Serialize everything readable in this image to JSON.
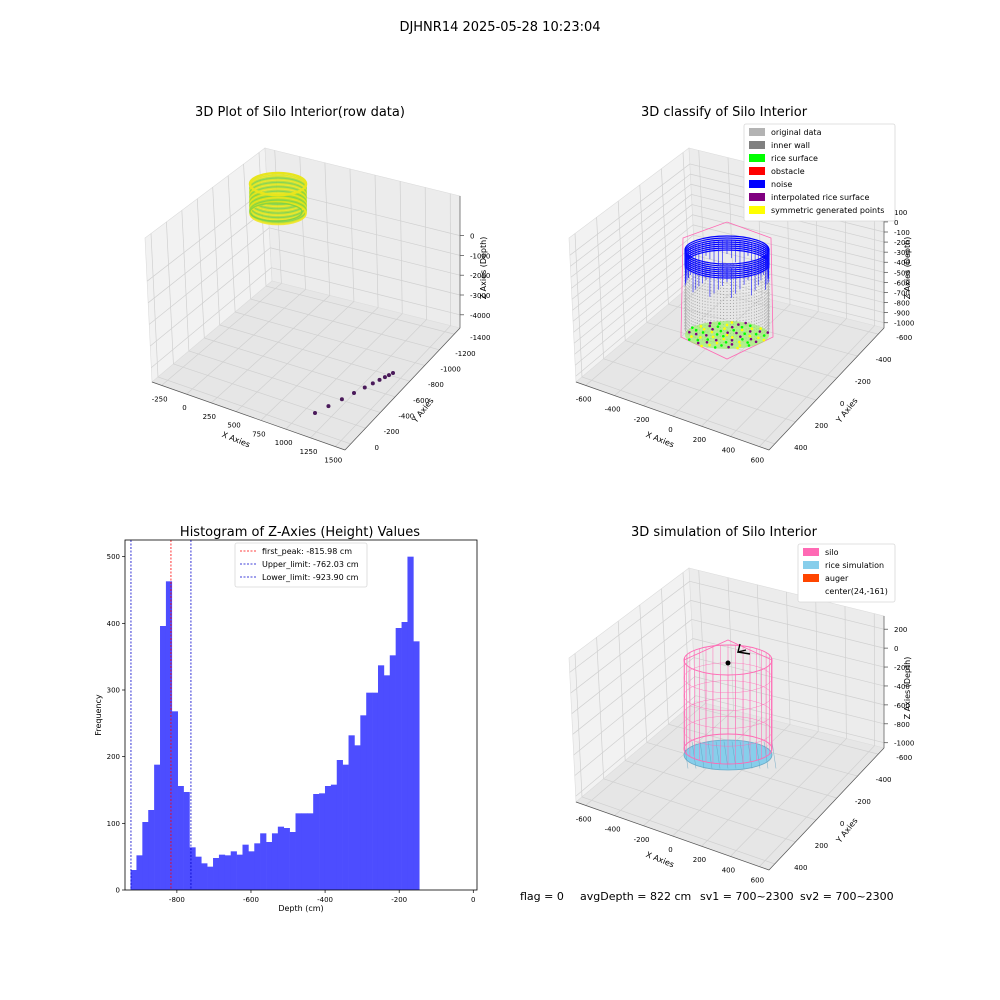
{
  "suptitle": "DJHNR14 2025-05-28 10:23:04",
  "footer": {
    "flag": "flag = 0",
    "avg_depth": "avgDepth = 822 cm",
    "sv1": "sv1 = 700~2300",
    "sv2": "sv2 = 700~2300"
  },
  "chart_data": [
    {
      "type": "scatter",
      "title": "3D Plot of Silo Interior(row data)",
      "xlabel": "X Axies",
      "ylabel": "Y Axies",
      "zlabel": "Z Axies (Depth)",
      "x_ticks": [
        "-250",
        "0",
        "250",
        "500",
        "750",
        "1000",
        "1250",
        "1500"
      ],
      "y_ticks": [
        "0",
        "-200",
        "-400",
        "-600",
        "-800",
        "-1000",
        "-1200",
        "-1400"
      ],
      "z_ticks": [
        "0",
        "-1000",
        "-2000",
        "-3000",
        "-4000"
      ],
      "ring_colors": [
        "#d4e51a",
        "#f2e51c",
        "#a8dc34",
        "#7bd04a"
      ],
      "outlier_color": "#4a1a5a",
      "outlier_points": [
        {
          "x": 1480,
          "y": -1380,
          "z": -4700
        },
        {
          "x": 1380,
          "y": -1250,
          "z": -4700
        },
        {
          "x": 1280,
          "y": -1120,
          "z": -4700
        },
        {
          "x": 1190,
          "y": -980,
          "z": -4700
        },
        {
          "x": 1110,
          "y": -860,
          "z": -4700
        },
        {
          "x": 1050,
          "y": -740,
          "z": -4700
        },
        {
          "x": 1000,
          "y": -640,
          "z": -4700
        },
        {
          "x": 960,
          "y": -540,
          "z": -4700
        },
        {
          "x": 930,
          "y": -450,
          "z": -4700
        },
        {
          "x": 900,
          "y": -360,
          "z": -4700
        }
      ]
    },
    {
      "type": "scatter",
      "title": "3D classify of Silo Interior",
      "xlabel": "X Axies",
      "ylabel": "Y Axies",
      "zlabel": "Z Axies (Depth)",
      "x_ticks": [
        "-600",
        "-400",
        "-200",
        "0",
        "200",
        "400",
        "600"
      ],
      "y_ticks": [
        "400",
        "200",
        "0",
        "-200",
        "-400",
        "-600"
      ],
      "z_ticks": [
        "100",
        "0",
        "-100",
        "-200",
        "-300",
        "-400",
        "-500",
        "-600",
        "-700",
        "-800",
        "-900",
        "-1000"
      ],
      "legend": [
        {
          "label": "original data",
          "color": "#b3b3b3"
        },
        {
          "label": "inner wall",
          "color": "#808080"
        },
        {
          "label": "rice surface",
          "color": "#00ff00"
        },
        {
          "label": "obstacle",
          "color": "#ff0000"
        },
        {
          "label": "noise",
          "color": "#0000ff"
        },
        {
          "label": "interpolated rice surface",
          "color": "#800080"
        },
        {
          "label": "symmetric generated points",
          "color": "#ffff00"
        }
      ],
      "hull_color": "#ff69b4"
    },
    {
      "type": "bar",
      "title": "Histogram of Z-Axies (Height) Values",
      "xlabel": "Depth (cm)",
      "ylabel": "Frequency",
      "bar_color": "#4d4dff",
      "bin_start": -925,
      "bin_width": 15.9,
      "values": [
        30,
        52,
        102,
        120,
        188,
        396,
        463,
        268,
        156,
        147,
        64,
        50,
        40,
        35,
        48,
        53,
        52,
        58,
        53,
        68,
        58,
        70,
        85,
        72,
        85,
        95,
        93,
        87,
        115,
        115,
        115,
        144,
        145,
        156,
        158,
        195,
        188,
        232,
        217,
        262,
        296,
        296,
        337,
        322,
        352,
        393,
        402,
        500,
        373
      ],
      "xlim": [
        -940,
        10
      ],
      "ylim": [
        0,
        525
      ],
      "x_ticks": [
        -800,
        -600,
        -400,
        -200,
        0
      ],
      "y_ticks": [
        0,
        100,
        200,
        300,
        400,
        500
      ],
      "vlines": [
        {
          "x": -815.98,
          "color": "#ff0000",
          "label": "first_peak: -815.98 cm"
        },
        {
          "x": -762.03,
          "color": "#0000cc",
          "label": "Upper_limit: -762.03 cm"
        },
        {
          "x": -923.9,
          "color": "#0000cc",
          "label": "Lower_limit: -923.90 cm"
        }
      ]
    },
    {
      "type": "scatter",
      "title": "3D simulation of Silo Interior",
      "xlabel": "X Axies",
      "ylabel": "Y Axies",
      "zlabel": "Z Axies (Depth)",
      "x_ticks": [
        "-600",
        "-400",
        "-200",
        "0",
        "200",
        "400",
        "600"
      ],
      "y_ticks": [
        "400",
        "200",
        "0",
        "-200",
        "-400",
        "-600"
      ],
      "z_ticks": [
        "200",
        "0",
        "-200",
        "-400",
        "-600",
        "-800",
        "-1000"
      ],
      "legend": [
        {
          "label": "silo",
          "color": "#ff69b4"
        },
        {
          "label": "rice simulation",
          "color": "#87ceeb"
        },
        {
          "label": "auger",
          "color": "#ff4500"
        },
        {
          "label": "center(24,-161)",
          "color": ""
        }
      ]
    }
  ]
}
